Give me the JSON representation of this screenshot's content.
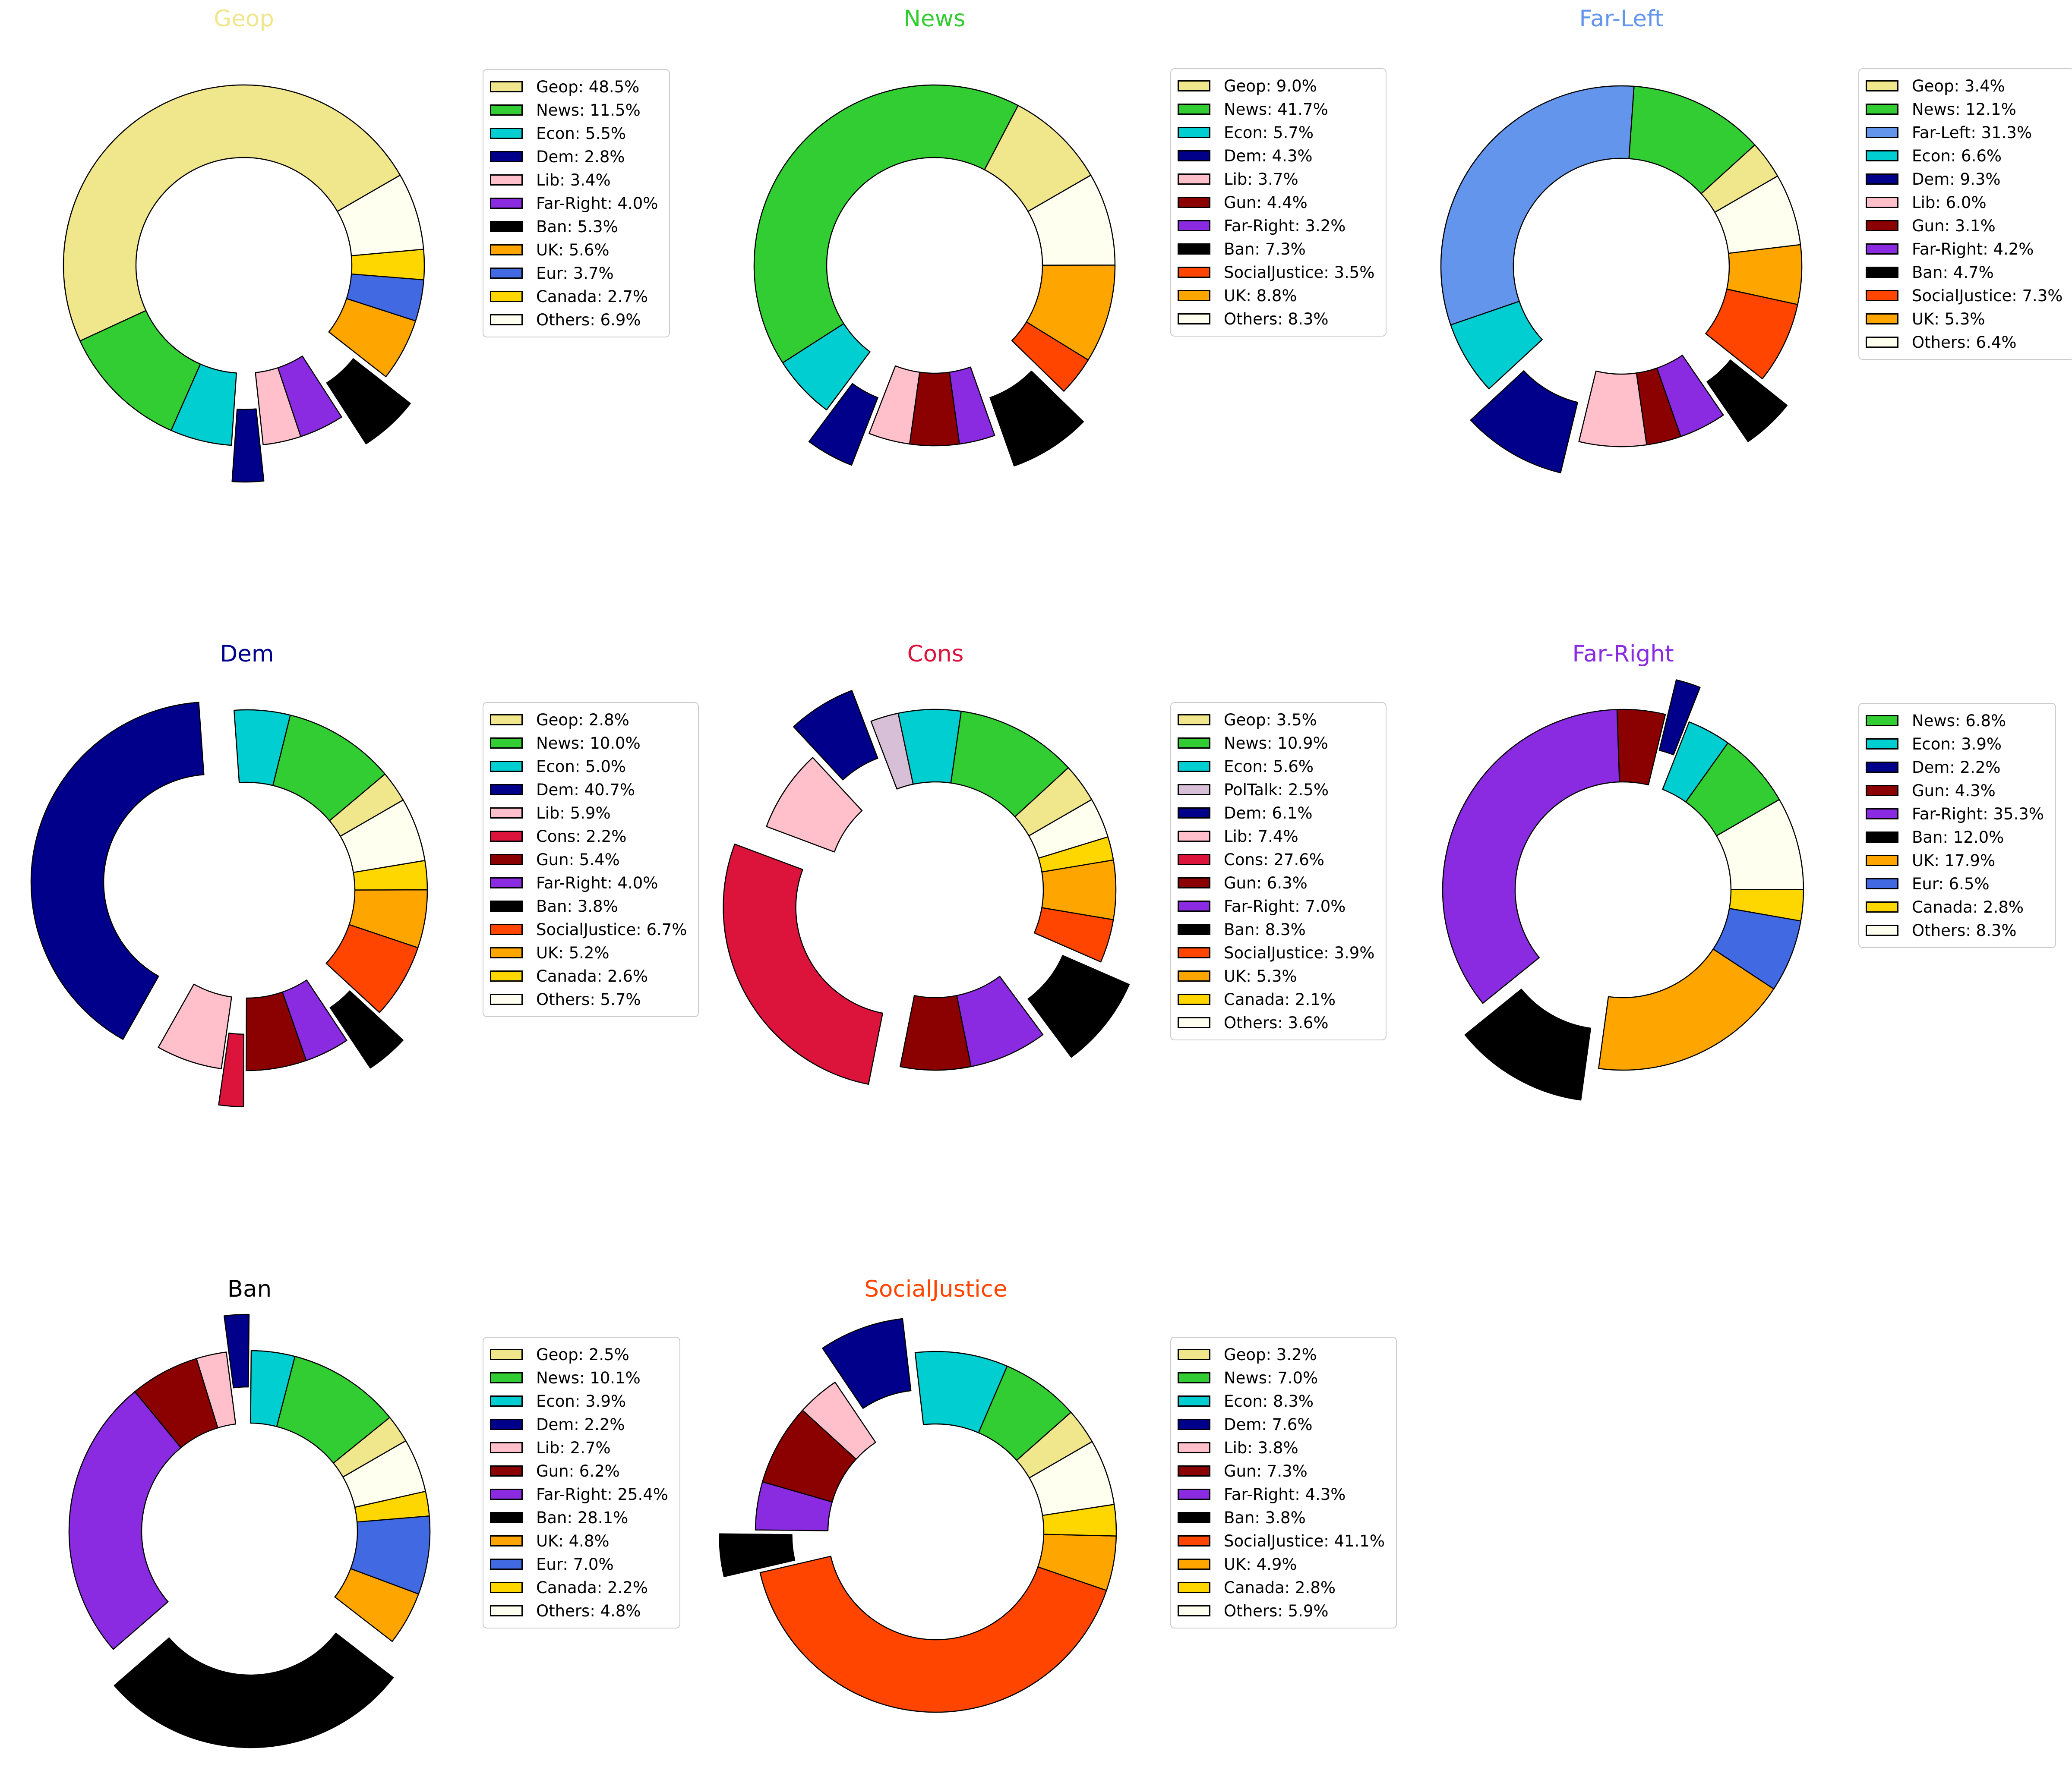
{
  "figure": {
    "background": "#ffffff"
  },
  "palette": {
    "Geop": "#F0E68C",
    "News": "#32CD32",
    "Econ": "#00CED1",
    "Dem": "#00008B",
    "Lib": "#FFC0CB",
    "Gun": "#8B0000",
    "Far-Right": "#8A2BE2",
    "Far-Left": "#6495ED",
    "Cons": "#DC143C",
    "PolTalk": "#D8BFD8",
    "Ban": "#000000",
    "SocialJustice": "#FF4500",
    "UK": "#FFA500",
    "Eur": "#4169E1",
    "Canada": "#FFD700",
    "Others": "#FFFFF0"
  },
  "exploded_topics": [
    "Dem",
    "Cons",
    "Ban"
  ],
  "legend_label_format": "{label}: {value}%",
  "chart_data": [
    {
      "type": "pie",
      "subtype": "donut",
      "title": "Geop",
      "title_color": "#F0E68C",
      "start_angle": 30,
      "direction": "counterclockwise",
      "legend_position": "right",
      "series": [
        {
          "label": "Geop",
          "value": 48.5
        },
        {
          "label": "News",
          "value": 11.5
        },
        {
          "label": "Econ",
          "value": 5.5
        },
        {
          "label": "Dem",
          "value": 2.8
        },
        {
          "label": "Lib",
          "value": 3.4
        },
        {
          "label": "Far-Right",
          "value": 4.0
        },
        {
          "label": "Ban",
          "value": 5.3
        },
        {
          "label": "UK",
          "value": 5.6
        },
        {
          "label": "Eur",
          "value": 3.7
        },
        {
          "label": "Canada",
          "value": 2.7
        },
        {
          "label": "Others",
          "value": 6.9
        }
      ]
    },
    {
      "type": "pie",
      "subtype": "donut",
      "title": "News",
      "title_color": "#32CD32",
      "start_angle": 30,
      "direction": "counterclockwise",
      "legend_position": "right",
      "series": [
        {
          "label": "Geop",
          "value": 9.0
        },
        {
          "label": "News",
          "value": 41.7
        },
        {
          "label": "Econ",
          "value": 5.7
        },
        {
          "label": "Dem",
          "value": 4.3
        },
        {
          "label": "Lib",
          "value": 3.7
        },
        {
          "label": "Gun",
          "value": 4.4
        },
        {
          "label": "Far-Right",
          "value": 3.2
        },
        {
          "label": "Ban",
          "value": 7.3
        },
        {
          "label": "SocialJustice",
          "value": 3.5
        },
        {
          "label": "UK",
          "value": 8.8
        },
        {
          "label": "Others",
          "value": 8.3
        }
      ]
    },
    {
      "type": "pie",
      "subtype": "donut",
      "title": "Far-Left",
      "title_color": "#6495ED",
      "start_angle": 30,
      "direction": "counterclockwise",
      "legend_position": "right",
      "series": [
        {
          "label": "Geop",
          "value": 3.4
        },
        {
          "label": "News",
          "value": 12.1
        },
        {
          "label": "Far-Left",
          "value": 31.3
        },
        {
          "label": "Econ",
          "value": 6.6
        },
        {
          "label": "Dem",
          "value": 9.3
        },
        {
          "label": "Lib",
          "value": 6.0
        },
        {
          "label": "Gun",
          "value": 3.1
        },
        {
          "label": "Far-Right",
          "value": 4.2
        },
        {
          "label": "Ban",
          "value": 4.7
        },
        {
          "label": "SocialJustice",
          "value": 7.3
        },
        {
          "label": "UK",
          "value": 5.3
        },
        {
          "label": "Others",
          "value": 6.4
        }
      ]
    },
    {
      "type": "pie",
      "subtype": "donut",
      "title": "Dem",
      "title_color": "#00008B",
      "start_angle": 30,
      "direction": "counterclockwise",
      "legend_position": "right",
      "series": [
        {
          "label": "Geop",
          "value": 2.8
        },
        {
          "label": "News",
          "value": 10.0
        },
        {
          "label": "Econ",
          "value": 5.0
        },
        {
          "label": "Dem",
          "value": 40.7
        },
        {
          "label": "Lib",
          "value": 5.9
        },
        {
          "label": "Cons",
          "value": 2.2
        },
        {
          "label": "Gun",
          "value": 5.4
        },
        {
          "label": "Far-Right",
          "value": 4.0
        },
        {
          "label": "Ban",
          "value": 3.8
        },
        {
          "label": "SocialJustice",
          "value": 6.7
        },
        {
          "label": "UK",
          "value": 5.2
        },
        {
          "label": "Canada",
          "value": 2.6
        },
        {
          "label": "Others",
          "value": 5.7
        }
      ]
    },
    {
      "type": "pie",
      "subtype": "donut",
      "title": "Cons",
      "title_color": "#DC143C",
      "start_angle": 30,
      "direction": "counterclockwise",
      "legend_position": "right",
      "series": [
        {
          "label": "Geop",
          "value": 3.5
        },
        {
          "label": "News",
          "value": 10.9
        },
        {
          "label": "Econ",
          "value": 5.6
        },
        {
          "label": "PolTalk",
          "value": 2.5
        },
        {
          "label": "Dem",
          "value": 6.1
        },
        {
          "label": "Lib",
          "value": 7.4
        },
        {
          "label": "Cons",
          "value": 27.6
        },
        {
          "label": "Gun",
          "value": 6.3
        },
        {
          "label": "Far-Right",
          "value": 7.0
        },
        {
          "label": "Ban",
          "value": 8.3
        },
        {
          "label": "SocialJustice",
          "value": 3.9
        },
        {
          "label": "UK",
          "value": 5.3
        },
        {
          "label": "Canada",
          "value": 2.1
        },
        {
          "label": "Others",
          "value": 3.6
        }
      ]
    },
    {
      "type": "pie",
      "subtype": "donut",
      "title": "Far-Right",
      "title_color": "#8A2BE2",
      "start_angle": 30,
      "direction": "counterclockwise",
      "legend_position": "right",
      "series": [
        {
          "label": "News",
          "value": 6.8
        },
        {
          "label": "Econ",
          "value": 3.9
        },
        {
          "label": "Dem",
          "value": 2.2
        },
        {
          "label": "Gun",
          "value": 4.3
        },
        {
          "label": "Far-Right",
          "value": 35.3
        },
        {
          "label": "Ban",
          "value": 12.0
        },
        {
          "label": "UK",
          "value": 17.9
        },
        {
          "label": "Eur",
          "value": 6.5
        },
        {
          "label": "Canada",
          "value": 2.8
        },
        {
          "label": "Others",
          "value": 8.3
        }
      ]
    },
    {
      "type": "pie",
      "subtype": "donut",
      "title": "Ban",
      "title_color": "#000000",
      "start_angle": 30,
      "direction": "counterclockwise",
      "legend_position": "right",
      "series": [
        {
          "label": "Geop",
          "value": 2.5
        },
        {
          "label": "News",
          "value": 10.1
        },
        {
          "label": "Econ",
          "value": 3.9
        },
        {
          "label": "Dem",
          "value": 2.2
        },
        {
          "label": "Lib",
          "value": 2.7
        },
        {
          "label": "Gun",
          "value": 6.2
        },
        {
          "label": "Far-Right",
          "value": 25.4
        },
        {
          "label": "Ban",
          "value": 28.1
        },
        {
          "label": "UK",
          "value": 4.8
        },
        {
          "label": "Eur",
          "value": 7.0
        },
        {
          "label": "Canada",
          "value": 2.2
        },
        {
          "label": "Others",
          "value": 4.8
        }
      ]
    },
    {
      "type": "pie",
      "subtype": "donut",
      "title": "SocialJustice",
      "title_color": "#FF4500",
      "start_angle": 30,
      "direction": "counterclockwise",
      "legend_position": "right",
      "series": [
        {
          "label": "Geop",
          "value": 3.2
        },
        {
          "label": "News",
          "value": 7.0
        },
        {
          "label": "Econ",
          "value": 8.3
        },
        {
          "label": "Dem",
          "value": 7.6
        },
        {
          "label": "Lib",
          "value": 3.8
        },
        {
          "label": "Gun",
          "value": 7.3
        },
        {
          "label": "Far-Right",
          "value": 4.3
        },
        {
          "label": "Ban",
          "value": 3.8
        },
        {
          "label": "SocialJustice",
          "value": 41.1
        },
        {
          "label": "UK",
          "value": 4.9
        },
        {
          "label": "Canada",
          "value": 2.8
        },
        {
          "label": "Others",
          "value": 5.9
        }
      ]
    }
  ]
}
